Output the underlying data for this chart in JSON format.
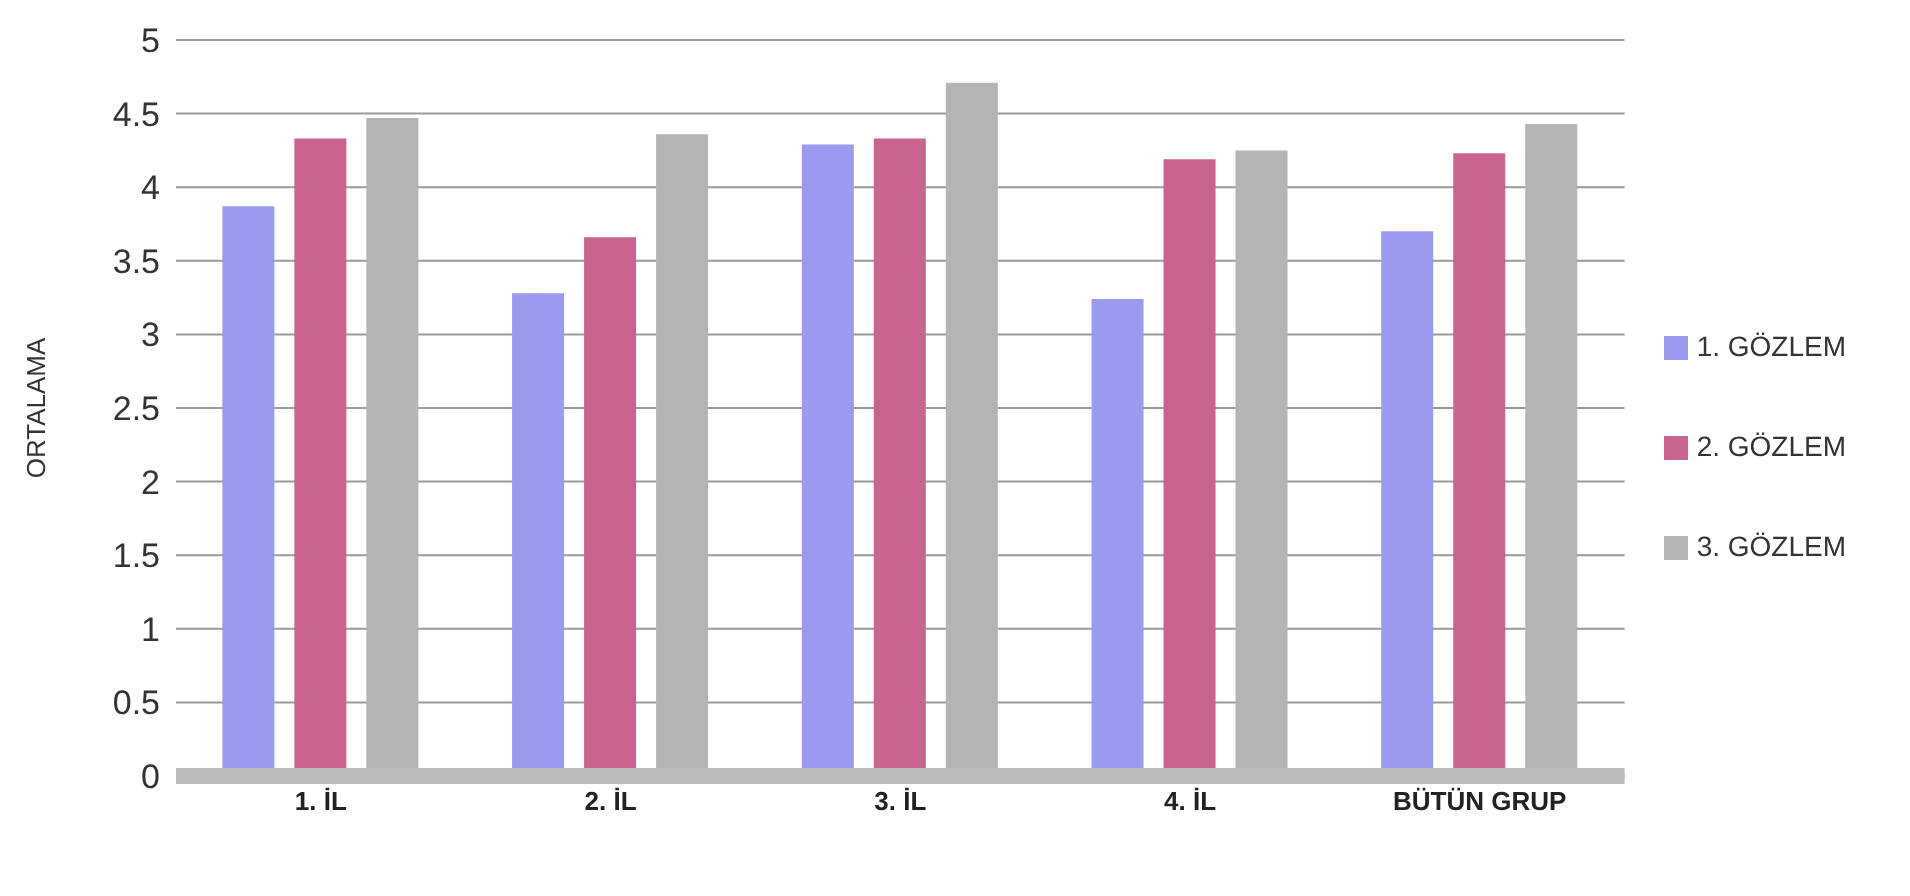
{
  "chart_data": {
    "type": "bar",
    "ylabel": "ORTALAMA",
    "categories": [
      "1. İL",
      "2. İL",
      "3. İL",
      "4. İL",
      "BÜTÜN GRUP"
    ],
    "series": [
      {
        "name": "1. GÖZLEM",
        "color": "#9a9aee",
        "values": [
          3.87,
          3.28,
          4.29,
          3.24,
          3.7
        ]
      },
      {
        "name": "2. GÖZLEM",
        "color": "#c8648e",
        "values": [
          4.33,
          3.66,
          4.33,
          4.19,
          4.23
        ]
      },
      {
        "name": "3. GÖZLEM",
        "color": "#b4b4b4",
        "values": [
          4.47,
          4.36,
          4.71,
          4.25,
          4.43
        ]
      }
    ],
    "ylim": [
      0,
      5
    ],
    "yticks": [
      0,
      0.5,
      1,
      1.5,
      2,
      2.5,
      3,
      3.5,
      4,
      4.5,
      5
    ],
    "grid": "y",
    "legend": "right"
  }
}
